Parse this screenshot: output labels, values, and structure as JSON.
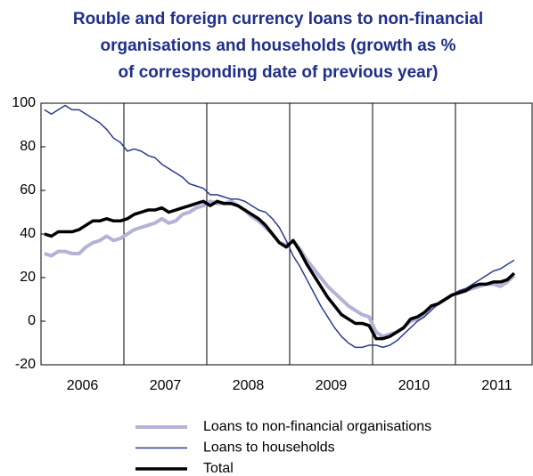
{
  "chart_data": {
    "type": "line",
    "title": [
      "Rouble and foreign currency loans to non-financial",
      "organisations and households (growth as %",
      "of corresponding date of previous year)"
    ],
    "categories": [
      null,
      null,
      null,
      null,
      null,
      null,
      "2006",
      null,
      null,
      null,
      null,
      null,
      null,
      null,
      null,
      null,
      null,
      null,
      "2007",
      null,
      null,
      null,
      null,
      null,
      null,
      null,
      null,
      null,
      null,
      null,
      "2008",
      null,
      null,
      null,
      null,
      null,
      null,
      null,
      null,
      null,
      null,
      null,
      "2009",
      null,
      null,
      null,
      null,
      null,
      null,
      null,
      null,
      null,
      null,
      null,
      "2010",
      null,
      null,
      null,
      null,
      null,
      null,
      null,
      null,
      null,
      null,
      null,
      "2011",
      null,
      null
    ],
    "series": [
      {
        "name": "Loans to non-financial organisations",
        "color": "#b3b3d9",
        "width": 4,
        "values": [
          31,
          30,
          32,
          32,
          31,
          31,
          34,
          36,
          37,
          39,
          37,
          38,
          40,
          42,
          43,
          44,
          45,
          47,
          45,
          46,
          49,
          50,
          52,
          53,
          55,
          54,
          54,
          55,
          53,
          51,
          48,
          46,
          43,
          40,
          36,
          35,
          37,
          33,
          28,
          24,
          20,
          16,
          13,
          10,
          7,
          5,
          3,
          2,
          -5,
          -7,
          -6,
          -5,
          -3,
          0,
          1,
          3,
          6,
          8,
          10,
          12,
          13,
          14,
          15,
          16,
          17,
          17,
          16,
          18,
          21
        ]
      },
      {
        "name": "Loans to households",
        "color": "#2b3a8f",
        "width": 1.5,
        "values": [
          97,
          95,
          97,
          99,
          97,
          97,
          95,
          93,
          91,
          88,
          84,
          82,
          78,
          79,
          78,
          76,
          75,
          72,
          70,
          68,
          66,
          63,
          62,
          61,
          58,
          58,
          57,
          56,
          56,
          55,
          53,
          51,
          50,
          47,
          43,
          37,
          30,
          25,
          19,
          13,
          7,
          2,
          -3,
          -7,
          -10,
          -12,
          -12,
          -11,
          -11,
          -12,
          -11,
          -9,
          -6,
          -3,
          0,
          2,
          5,
          8,
          10,
          12,
          14,
          15,
          17,
          19,
          21,
          23,
          24,
          26,
          28
        ]
      },
      {
        "name": "Total",
        "color": "#000000",
        "width": 3.5,
        "values": [
          40,
          39,
          41,
          41,
          41,
          42,
          44,
          46,
          46,
          47,
          46,
          46,
          47,
          49,
          50,
          51,
          51,
          52,
          50,
          51,
          52,
          53,
          54,
          55,
          53,
          55,
          54,
          54,
          53,
          51,
          49,
          47,
          44,
          40,
          36,
          34,
          37,
          32,
          26,
          21,
          16,
          11,
          7,
          3,
          1,
          -1,
          -1,
          -2,
          -8,
          -8,
          -7,
          -5,
          -3,
          1,
          2,
          4,
          7,
          8,
          10,
          12,
          13,
          14,
          16,
          17,
          17,
          18,
          18,
          19,
          22
        ]
      }
    ],
    "ylim": [
      -20,
      100
    ],
    "yticks": [
      -20,
      0,
      20,
      40,
      60,
      80,
      100
    ],
    "grid": false
  }
}
